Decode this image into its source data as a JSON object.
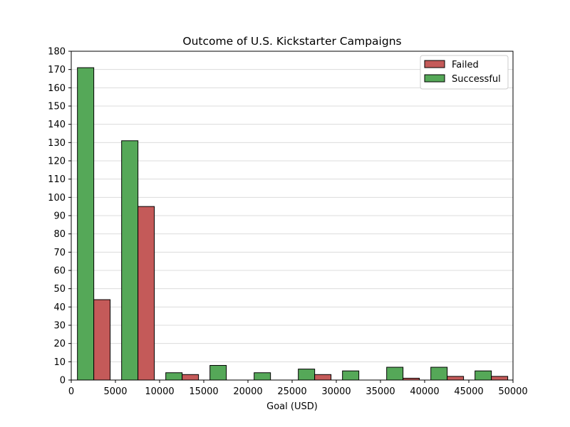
{
  "chart_data": {
    "type": "bar",
    "title": "Outcome of U.S. Kickstarter Campaigns",
    "xlabel": "Goal (USD)",
    "ylabel": "",
    "xlim": [
      0,
      50000
    ],
    "ylim": [
      0,
      180
    ],
    "xticks": [
      0,
      5000,
      10000,
      15000,
      20000,
      25000,
      30000,
      35000,
      40000,
      45000,
      50000
    ],
    "yticks": [
      0,
      10,
      20,
      30,
      40,
      50,
      60,
      70,
      80,
      90,
      100,
      110,
      120,
      130,
      140,
      150,
      160,
      170,
      180
    ],
    "grid": "horizontal",
    "legend_position": "top-right",
    "bin_width": 5000,
    "bin_starts": [
      0,
      5000,
      10000,
      15000,
      20000,
      25000,
      30000,
      35000,
      40000,
      45000
    ],
    "series": [
      {
        "name": "Successful",
        "color": "#55a858",
        "values": [
          171,
          131,
          4,
          8,
          4,
          6,
          5,
          7,
          7,
          5
        ]
      },
      {
        "name": "Failed",
        "color": "#c45a59",
        "values": [
          44,
          95,
          3,
          0,
          0,
          3,
          0,
          1,
          2,
          2
        ]
      }
    ],
    "legend_order": [
      "Failed",
      "Successful"
    ]
  }
}
